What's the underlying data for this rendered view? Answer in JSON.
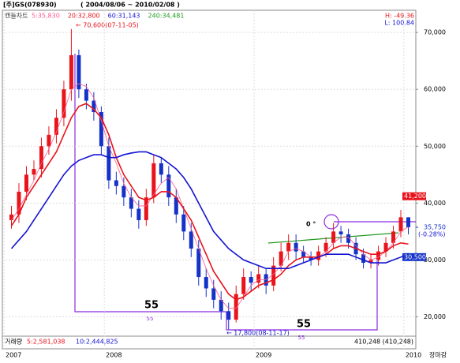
{
  "header": {
    "title": "[주]GS(078930)",
    "period": "( 2004/08/06 ~ 2010/02/08 )"
  },
  "chart_data": {
    "type": "candlestick",
    "legend_label": "캔들차트",
    "stats": {
      "high": "H: -49.36",
      "low": "L: 100.84"
    },
    "annotations": {
      "peak": "← 70,600(07-11-05)",
      "trough": "← 17,800(08-11-17)",
      "count1": "55",
      "count1_small": "55",
      "count2": "55",
      "count2_small": "55",
      "angle": "0 °"
    },
    "x": [
      2007.38,
      2007.43,
      2007.48,
      2007.53,
      2007.58,
      2007.63,
      2007.68,
      2007.73,
      2007.78,
      2007.83,
      2007.88,
      2007.93,
      2007.98,
      2008.03,
      2008.08,
      2008.13,
      2008.18,
      2008.23,
      2008.28,
      2008.33,
      2008.38,
      2008.43,
      2008.48,
      2008.53,
      2008.58,
      2008.63,
      2008.68,
      2008.73,
      2008.78,
      2008.83,
      2008.88,
      2008.93,
      2008.98,
      2009.03,
      2009.08,
      2009.13,
      2009.18,
      2009.23,
      2009.28,
      2009.33,
      2009.38,
      2009.43,
      2009.48,
      2009.53,
      2009.58,
      2009.63,
      2009.68,
      2009.73,
      2009.78,
      2009.83,
      2009.88,
      2009.93,
      2009.98,
      2010.03
    ],
    "open": [
      37000,
      38000,
      42000,
      45000,
      46000,
      50000,
      52000,
      55000,
      60000,
      66000,
      60000,
      58000,
      56000,
      50000,
      44000,
      43000,
      41000,
      39000,
      37000,
      41000,
      47000,
      45000,
      41000,
      38000,
      35000,
      32000,
      27000,
      25000,
      23000,
      21000,
      19500,
      24000,
      27000,
      26000,
      27500,
      25500,
      29000,
      31500,
      33000,
      31500,
      30500,
      30000,
      31500,
      33000,
      35000,
      34500,
      33000,
      31000,
      29500,
      30000,
      31500,
      33000,
      35000,
      37500
    ],
    "high": [
      39500,
      43500,
      46500,
      47500,
      51500,
      53500,
      56500,
      61500,
      70600,
      67000,
      61000,
      59500,
      57000,
      51500,
      45500,
      44500,
      42500,
      40500,
      42500,
      48500,
      48000,
      46500,
      42500,
      39500,
      36500,
      33500,
      28500,
      26500,
      24500,
      22500,
      25500,
      28500,
      28000,
      29000,
      28500,
      30500,
      33000,
      34500,
      34500,
      32500,
      31500,
      32500,
      34000,
      36500,
      36000,
      35500,
      34000,
      32000,
      31000,
      32500,
      34000,
      36000,
      38800,
      37500
    ],
    "low": [
      35500,
      36500,
      40500,
      44000,
      44500,
      48500,
      50500,
      53500,
      58000,
      58500,
      56500,
      54500,
      48500,
      42500,
      41500,
      39500,
      37500,
      35500,
      36000,
      40000,
      43500,
      39500,
      36500,
      33500,
      30500,
      25500,
      23500,
      21500,
      19500,
      17800,
      19000,
      23000,
      24500,
      25000,
      24000,
      24500,
      28000,
      30000,
      30000,
      29500,
      29000,
      29000,
      30500,
      32000,
      33000,
      32000,
      30000,
      28500,
      28500,
      29000,
      30500,
      32000,
      34000,
      34500
    ],
    "close": [
      38000,
      42000,
      45000,
      46000,
      50000,
      52000,
      55000,
      60000,
      66000,
      60000,
      58000,
      56000,
      50000,
      44000,
      43000,
      41000,
      39000,
      37000,
      41000,
      47000,
      45000,
      41000,
      38000,
      35000,
      32000,
      27000,
      25000,
      23000,
      21000,
      19500,
      24000,
      27000,
      26000,
      27500,
      25500,
      29000,
      31500,
      33000,
      31500,
      30500,
      30000,
      31500,
      33000,
      35000,
      34500,
      33000,
      31000,
      29500,
      30000,
      31500,
      33000,
      35000,
      37500,
      35750
    ],
    "up_color": "#e8141c",
    "down_color": "#1432c8",
    "series": [
      {
        "name": "5:35,830",
        "color": "#ff5a8c",
        "values": [
          37000,
          39000,
          41500,
          44000,
          47000,
          49500,
          52500,
          56000,
          60000,
          61000,
          60500,
          58500,
          54500,
          50000,
          47000,
          43500,
          41000,
          39500,
          39500,
          41500,
          43500,
          44500,
          42500,
          39000,
          35500,
          32000,
          28500,
          25500,
          23000,
          21500,
          21500,
          23500,
          25500,
          26500,
          26500,
          27500,
          29000,
          31500,
          32000,
          31500,
          30500,
          30500,
          31500,
          33000,
          34000,
          34000,
          32500,
          31000,
          30000,
          30500,
          31500,
          33000,
          35000,
          35830
        ]
      },
      {
        "name": "20:32,800",
        "color": "#e8141c",
        "values": [
          36000,
          38000,
          41000,
          43000,
          45000,
          47000,
          49000,
          52000,
          55000,
          57000,
          57500,
          56500,
          55000,
          52000,
          48000,
          45000,
          43000,
          41000,
          40500,
          41000,
          42000,
          42000,
          41000,
          39000,
          37000,
          34000,
          31000,
          28000,
          26000,
          24000,
          23000,
          23500,
          24500,
          25500,
          26000,
          26500,
          27500,
          29000,
          30000,
          30500,
          30500,
          30500,
          31000,
          32000,
          32500,
          32500,
          32000,
          31500,
          31000,
          31000,
          31500,
          32500,
          33000,
          32800
        ]
      },
      {
        "name": "60:31,143",
        "color": "#1414d2",
        "values": [
          32000,
          33500,
          35000,
          37000,
          39000,
          41000,
          43000,
          45000,
          46500,
          47500,
          48000,
          48500,
          48500,
          48000,
          48000,
          48500,
          48800,
          49000,
          49000,
          48500,
          48000,
          47000,
          46000,
          44500,
          42500,
          40000,
          37500,
          35000,
          33500,
          32000,
          31000,
          30000,
          29500,
          29000,
          28500,
          28500,
          28500,
          28500,
          29000,
          29500,
          30000,
          30500,
          31000,
          31000,
          31000,
          31000,
          30500,
          30000,
          29500,
          29500,
          29500,
          30000,
          30500,
          31143
        ]
      },
      {
        "name": "240:34,481",
        "color": "#229922"
      }
    ],
    "xlim": [
      2007.33,
      2010.08
    ],
    "xticks": [
      {
        "value": 2007.33,
        "label": "2007"
      },
      2008,
      2009,
      2010
    ],
    "ylim": [
      16600,
      73900
    ],
    "yticks": [
      {
        "value": 20000,
        "label": "20,000"
      },
      {
        "value": 30000,
        "label": "30,000"
      },
      {
        "value": 40000,
        "label": "40,000"
      },
      {
        "value": 50000,
        "label": "50,000"
      },
      {
        "value": 60000,
        "label": "60,000"
      },
      {
        "value": 70000,
        "label": "70,000"
      }
    ],
    "price_tags": [
      {
        "value": 41200,
        "label": "41,200",
        "style": "red"
      },
      {
        "value": 35750,
        "label": "35,750",
        "style": "text"
      },
      {
        "value": 30500,
        "label": "30,500",
        "style": "blue"
      }
    ],
    "change": "(-0.28%)",
    "volume": {
      "label": "거래량",
      "ma5": "5:2,581,038",
      "ma10": "10:2,444,825",
      "last": "410,248 (410,248)"
    },
    "footer": "장마감"
  }
}
